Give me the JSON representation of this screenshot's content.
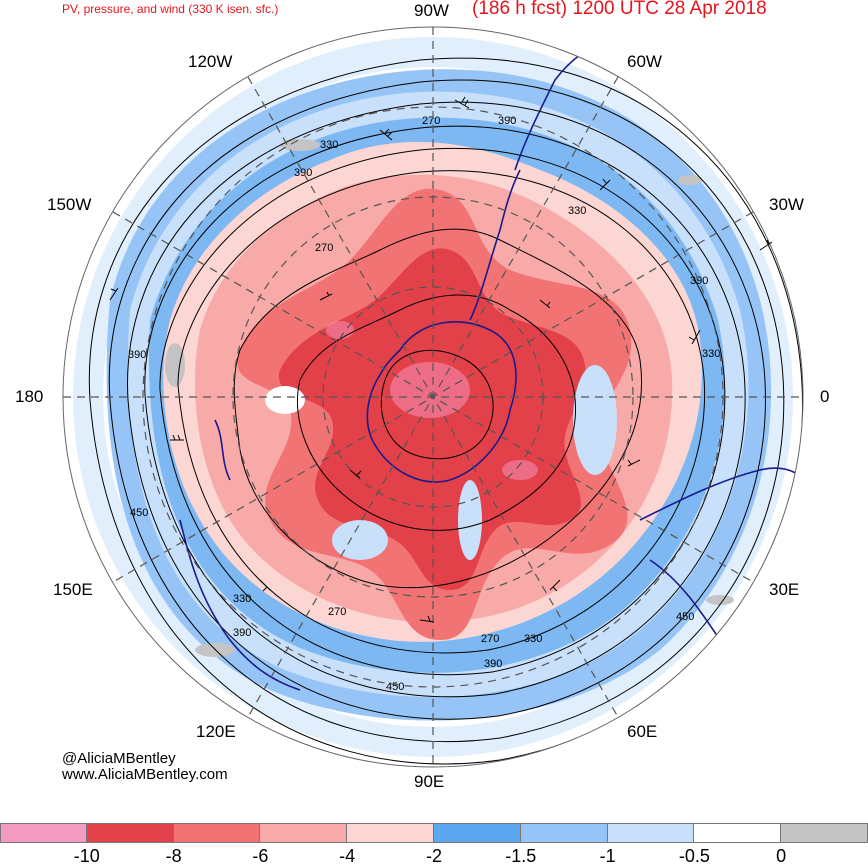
{
  "header": {
    "left_title": "PV, pressure, and wind (330 K isen. sfc.)",
    "right_title": "(186 h fcst) 1200 UTC 28 Apr 2018"
  },
  "longitudes": {
    "top": "90W",
    "top_right": "60W",
    "right_upper": "30W",
    "right": "0",
    "right_lower": "30E",
    "bottom_right": "60E",
    "bottom": "90E",
    "bottom_left": "120E",
    "left_lower": "150E",
    "left": "180",
    "left_upper": "150W",
    "top_left": "120W"
  },
  "contour_labels": [
    "270",
    "330",
    "390",
    "450"
  ],
  "credit": {
    "handle": "@AliciaMBentley",
    "url": "www.AliciaMBentley.com"
  },
  "colorbar": {
    "colors": [
      "#f59ac0",
      "#e3414a",
      "#f27373",
      "#f7aaa8",
      "#fbd6d3",
      "#5ca7ef",
      "#97c4f6",
      "#c9e0fa",
      "#ffffff",
      "#c4c4c4"
    ],
    "ticks": [
      "-10",
      "-8",
      "-6",
      "-4",
      "-2",
      "-1.5",
      "-1",
      "-0.5",
      "0"
    ]
  }
}
